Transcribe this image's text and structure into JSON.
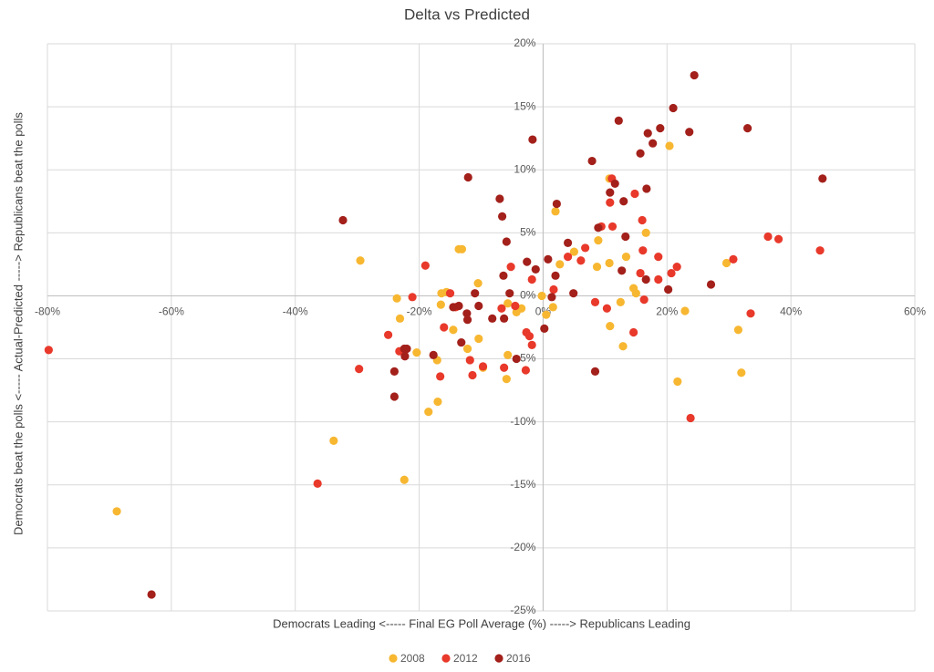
{
  "chart_data": {
    "type": "scatter",
    "title": "Delta vs Predicted",
    "x_label": "Democrats Leading <----- Final EG Poll Average (%) -----> Republicans Leading",
    "y_label": "Democrats  beat the polls <----- Actual-Predicted -----> Republicans beat the polls",
    "xlim": [
      -80,
      60
    ],
    "ylim": [
      -25,
      20
    ],
    "xticks": [
      {
        "value": -80,
        "label": "-80%"
      },
      {
        "value": -60,
        "label": "-60%"
      },
      {
        "value": -40,
        "label": "-40%"
      },
      {
        "value": -20,
        "label": "-20%"
      },
      {
        "value": 0,
        "label": "0%"
      },
      {
        "value": 20,
        "label": "20%"
      },
      {
        "value": 40,
        "label": "40%"
      },
      {
        "value": 60,
        "label": "60%"
      }
    ],
    "yticks": [
      {
        "value": -25,
        "label": "-25%"
      },
      {
        "value": -20,
        "label": "-20%"
      },
      {
        "value": -15,
        "label": "-15%"
      },
      {
        "value": -10,
        "label": "-10%"
      },
      {
        "value": -5,
        "label": "-5%"
      },
      {
        "value": 0,
        "label": "0%"
      },
      {
        "value": 5,
        "label": "5%"
      },
      {
        "value": 10,
        "label": "10%"
      },
      {
        "value": 15,
        "label": "15%"
      },
      {
        "value": 20,
        "label": "20%"
      }
    ],
    "grid": true,
    "legend": "bottom",
    "series": [
      {
        "name": "2008",
        "color": "#f7b731",
        "x": [
          -68.8,
          -33.8,
          -22.4,
          -29.5,
          -23.6,
          -23.1,
          -20.4,
          -18.5,
          -17.0,
          -17.1,
          -16.5,
          -16.4,
          -15.6,
          -14.5,
          -13.6,
          -13.1,
          -12.2,
          -10.5,
          -10.4,
          -9.7,
          -5.9,
          -5.7,
          -5.7,
          -4.3,
          -3.5,
          -0.2,
          0.5,
          1.6,
          2.0,
          2.7,
          5.0,
          8.7,
          8.9,
          10.7,
          10.7,
          10.8,
          12.5,
          12.9,
          13.4,
          14.6,
          15.0,
          16.6,
          20.4,
          21.7,
          22.9,
          29.6,
          31.5,
          32.0
        ],
        "values": [
          -17.1,
          -11.5,
          -14.6,
          2.8,
          -0.2,
          -1.8,
          -4.5,
          -9.2,
          -8.4,
          -5.1,
          -0.7,
          0.2,
          0.3,
          -2.7,
          3.7,
          3.7,
          -4.2,
          1.0,
          -3.4,
          -5.7,
          -6.6,
          -4.7,
          -0.6,
          -1.3,
          -1.0,
          0.0,
          -1.5,
          -0.9,
          6.7,
          2.5,
          3.5,
          2.3,
          4.4,
          9.3,
          2.6,
          -2.4,
          -0.5,
          -4.0,
          3.1,
          0.6,
          0.2,
          5.0,
          11.9,
          -6.8,
          -1.2,
          2.6,
          -2.7,
          -6.1
        ]
      },
      {
        "name": "2012",
        "color": "#e8392b",
        "x": [
          -79.8,
          -36.4,
          -29.7,
          -25.0,
          -23.2,
          -22.4,
          -21.1,
          -19.0,
          -16.6,
          -16.0,
          -15.0,
          -14.1,
          -11.8,
          -11.4,
          -9.7,
          -6.7,
          -6.3,
          -5.2,
          -4.5,
          -2.8,
          -2.7,
          -2.2,
          -1.8,
          -1.8,
          1.7,
          4.0,
          6.1,
          6.8,
          8.4,
          9.4,
          10.3,
          10.8,
          11.1,
          11.2,
          14.6,
          14.8,
          15.7,
          16.0,
          16.1,
          16.3,
          18.6,
          18.6,
          20.7,
          21.6,
          23.8,
          30.7,
          33.5,
          36.3,
          38.0,
          44.7
        ],
        "values": [
          -4.3,
          -14.9,
          -5.8,
          -3.1,
          -4.4,
          -4.4,
          -0.1,
          2.4,
          -6.4,
          -2.5,
          0.2,
          -0.9,
          -5.1,
          -6.3,
          -5.6,
          -1.0,
          -5.7,
          2.3,
          -0.8,
          -5.9,
          -2.9,
          -3.2,
          -3.9,
          1.3,
          0.5,
          3.1,
          2.8,
          3.8,
          -0.5,
          5.5,
          -1.0,
          7.4,
          9.3,
          5.5,
          -2.9,
          8.1,
          1.8,
          6.0,
          3.6,
          -0.3,
          3.1,
          1.3,
          1.8,
          2.3,
          -9.7,
          2.9,
          -1.4,
          4.7,
          4.5,
          3.6
        ]
      },
      {
        "name": "2016",
        "color": "#a3201b",
        "x": [
          -63.2,
          -32.3,
          -24.0,
          -24.0,
          -22.4,
          -22.3,
          -22.0,
          -17.7,
          -14.5,
          -13.6,
          -13.2,
          -12.3,
          -12.2,
          -12.1,
          -11.0,
          -10.4,
          -8.2,
          -7.0,
          -6.6,
          -6.4,
          -6.3,
          -5.9,
          -5.4,
          -4.3,
          -2.6,
          -1.7,
          -1.2,
          0.2,
          0.8,
          1.4,
          2.0,
          2.2,
          4.0,
          4.9,
          7.9,
          8.4,
          8.9,
          10.8,
          11.6,
          12.2,
          12.7,
          13.0,
          13.3,
          15.7,
          16.6,
          16.9,
          16.7,
          17.7,
          18.9,
          20.2,
          21.0,
          23.6,
          24.4,
          27.1,
          33.0,
          45.1
        ],
        "values": [
          -23.7,
          6.0,
          -6.0,
          -8.0,
          -4.2,
          -4.8,
          -4.2,
          -4.7,
          -0.9,
          -0.8,
          -3.7,
          -1.4,
          -1.9,
          9.4,
          0.2,
          -0.8,
          -1.8,
          7.7,
          6.3,
          1.6,
          -1.8,
          4.3,
          0.2,
          -5.0,
          2.7,
          12.4,
          2.1,
          -2.6,
          2.9,
          -0.1,
          1.6,
          7.3,
          4.2,
          0.2,
          10.7,
          -6.0,
          5.4,
          8.2,
          8.9,
          13.9,
          2.0,
          7.5,
          4.7,
          11.3,
          1.3,
          12.9,
          8.5,
          12.1,
          13.3,
          0.5,
          14.9,
          13.0,
          17.5,
          0.9,
          13.3,
          9.3
        ]
      }
    ]
  }
}
